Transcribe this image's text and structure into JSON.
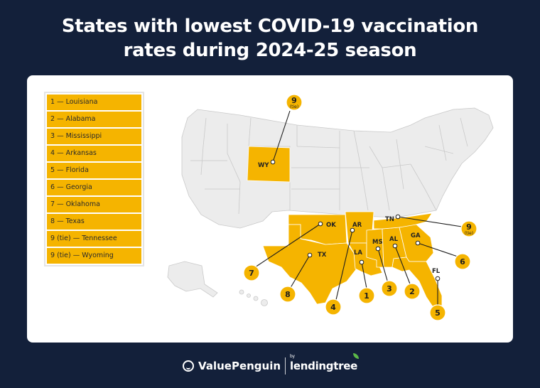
{
  "title": {
    "line1": "States with lowest COVID-19 vaccination",
    "line2": "rates during 2024-25 season"
  },
  "legend": [
    "1 — Louisiana",
    "2 — Alabama",
    "3 — Mississippi",
    "4 — Arkansas",
    "5 — Florida",
    "6 — Georgia",
    "7 — Oklahoma",
    "8 — Texas",
    "9 (tie) — Tennessee",
    "9 (tie) — Wyoming"
  ],
  "map": {
    "highlight_color": "#f5b400",
    "state_labels": {
      "wy": "WY",
      "ok": "OK",
      "ar": "AR",
      "tn": "TN",
      "tx": "TX",
      "la": "LA",
      "ms": "MS",
      "al": "AL",
      "ga": "GA",
      "fl": "FL"
    },
    "ranks": {
      "wy": "9",
      "tn": "9",
      "ok": "7",
      "tx": "8",
      "ar": "4",
      "la": "1",
      "ms": "3",
      "al": "2",
      "ga": "6",
      "fl": "5"
    },
    "tie_label": "(tie)"
  },
  "footer": {
    "brand1": "ValuePenguin",
    "by": "by",
    "brand2": "lendingtree"
  }
}
